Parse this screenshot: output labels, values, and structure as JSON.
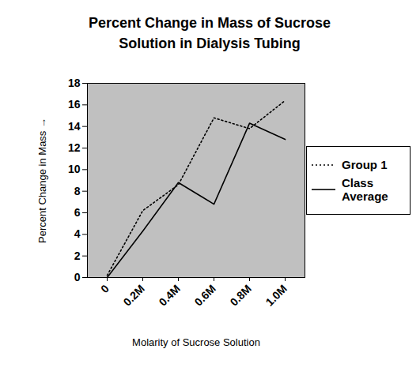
{
  "chart_data": {
    "type": "line",
    "title": "Percent Change in Mass of Sucrose Solution in Dialysis Tubing",
    "x_label": "Molarity of Sucrose Solution",
    "y_label": "Percent Change in Mass",
    "categories": [
      "0",
      "0.2M",
      "0.4M",
      "0.6M",
      "0.8M",
      "1.0M"
    ],
    "series": [
      {
        "name": "Group 1",
        "color": "#000000",
        "line_style": "dotted",
        "values": [
          0.2,
          6.2,
          8.6,
          14.8,
          13.8,
          16.4
        ]
      },
      {
        "name": "Class Average",
        "color": "#000000",
        "line_style": "solid",
        "values": [
          0,
          4.3,
          8.8,
          6.8,
          14.3,
          12.8
        ]
      }
    ],
    "ylim": [
      0,
      18
    ],
    "yticks": [
      0,
      2,
      4,
      6,
      8,
      10,
      12,
      14,
      16,
      18
    ],
    "grid": false,
    "legend": "right"
  }
}
